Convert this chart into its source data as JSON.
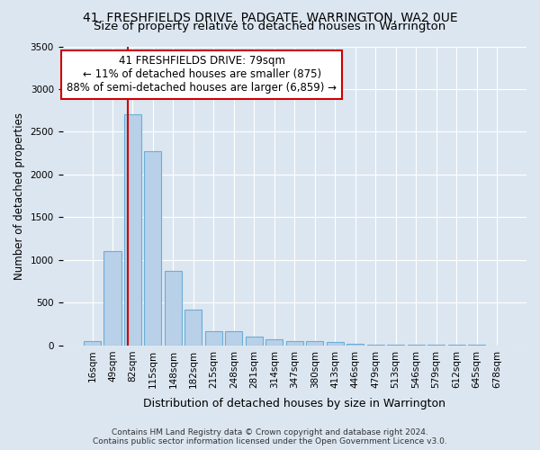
{
  "title": "41, FRESHFIELDS DRIVE, PADGATE, WARRINGTON, WA2 0UE",
  "subtitle": "Size of property relative to detached houses in Warrington",
  "xlabel": "Distribution of detached houses by size in Warrington",
  "ylabel": "Number of detached properties",
  "bar_labels": [
    "16sqm",
    "49sqm",
    "82sqm",
    "115sqm",
    "148sqm",
    "182sqm",
    "215sqm",
    "248sqm",
    "281sqm",
    "314sqm",
    "347sqm",
    "380sqm",
    "413sqm",
    "446sqm",
    "479sqm",
    "513sqm",
    "546sqm",
    "579sqm",
    "612sqm",
    "645sqm",
    "678sqm"
  ],
  "bar_values": [
    50,
    1100,
    2700,
    2270,
    870,
    420,
    170,
    165,
    100,
    70,
    55,
    55,
    40,
    25,
    10,
    5,
    5,
    5,
    5,
    5,
    0
  ],
  "bar_color": "#b8d0e8",
  "bar_edge_color": "#6baed6",
  "background_color": "#dce6f0",
  "grid_color": "#ffffff",
  "vline_x": 1.75,
  "vline_color": "#cc0000",
  "annotation_line1": "41 FRESHFIELDS DRIVE: 79sqm",
  "annotation_line2": "← 11% of detached houses are smaller (875)",
  "annotation_line3": "88% of semi-detached houses are larger (6,859) →",
  "annotation_box_color": "#ffffff",
  "annotation_box_edge_color": "#cc0000",
  "ylim": [
    0,
    3500
  ],
  "yticks": [
    0,
    500,
    1000,
    1500,
    2000,
    2500,
    3000,
    3500
  ],
  "footer_text": "Contains HM Land Registry data © Crown copyright and database right 2024.\nContains public sector information licensed under the Open Government Licence v3.0.",
  "title_fontsize": 10,
  "subtitle_fontsize": 9.5,
  "xlabel_fontsize": 9,
  "ylabel_fontsize": 8.5,
  "tick_fontsize": 7.5,
  "annotation_fontsize": 8.5,
  "footer_fontsize": 6.5
}
